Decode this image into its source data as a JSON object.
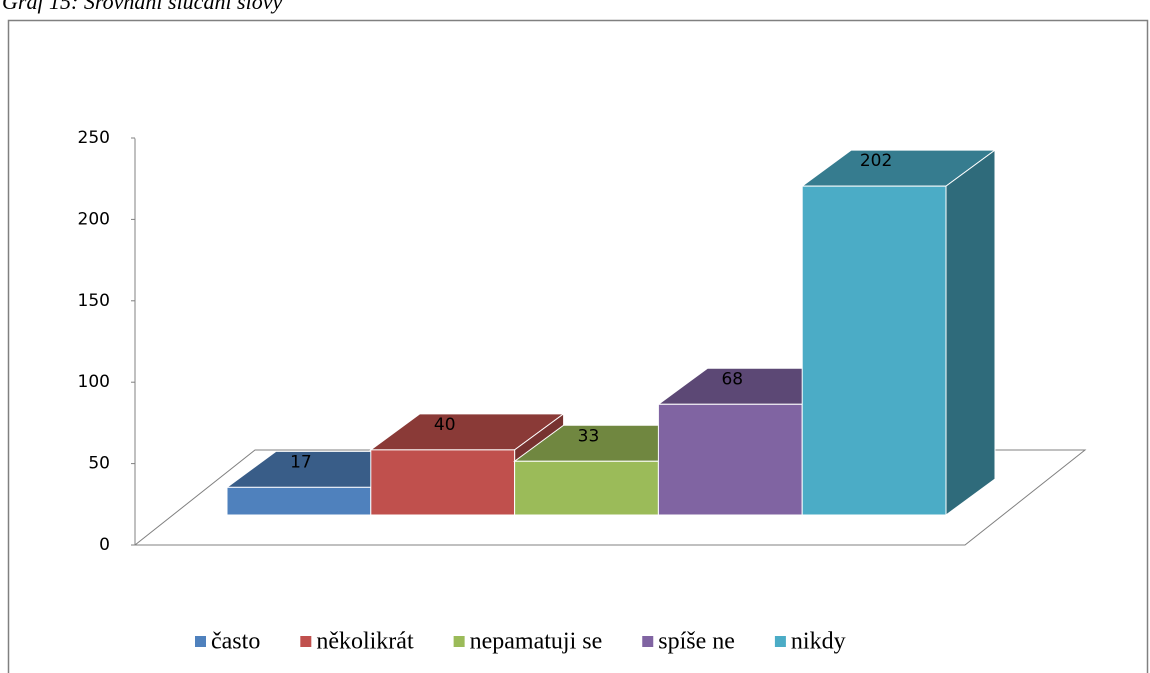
{
  "chart_data": {
    "type": "bar3d",
    "title": "Graf 15: Srovnání slučání slovy",
    "categories": [
      "často",
      "několikrát",
      "nepamatuji se",
      "spíše ne",
      "nikdy"
    ],
    "values": [
      17,
      40,
      33,
      68,
      202
    ],
    "colors": [
      "#4f81bd",
      "#c0504d",
      "#9bbb59",
      "#8064a2",
      "#4bacc6"
    ],
    "ylim": [
      0,
      250
    ],
    "yticks": [
      0,
      50,
      100,
      150,
      200,
      250
    ],
    "legend": "bottom"
  }
}
